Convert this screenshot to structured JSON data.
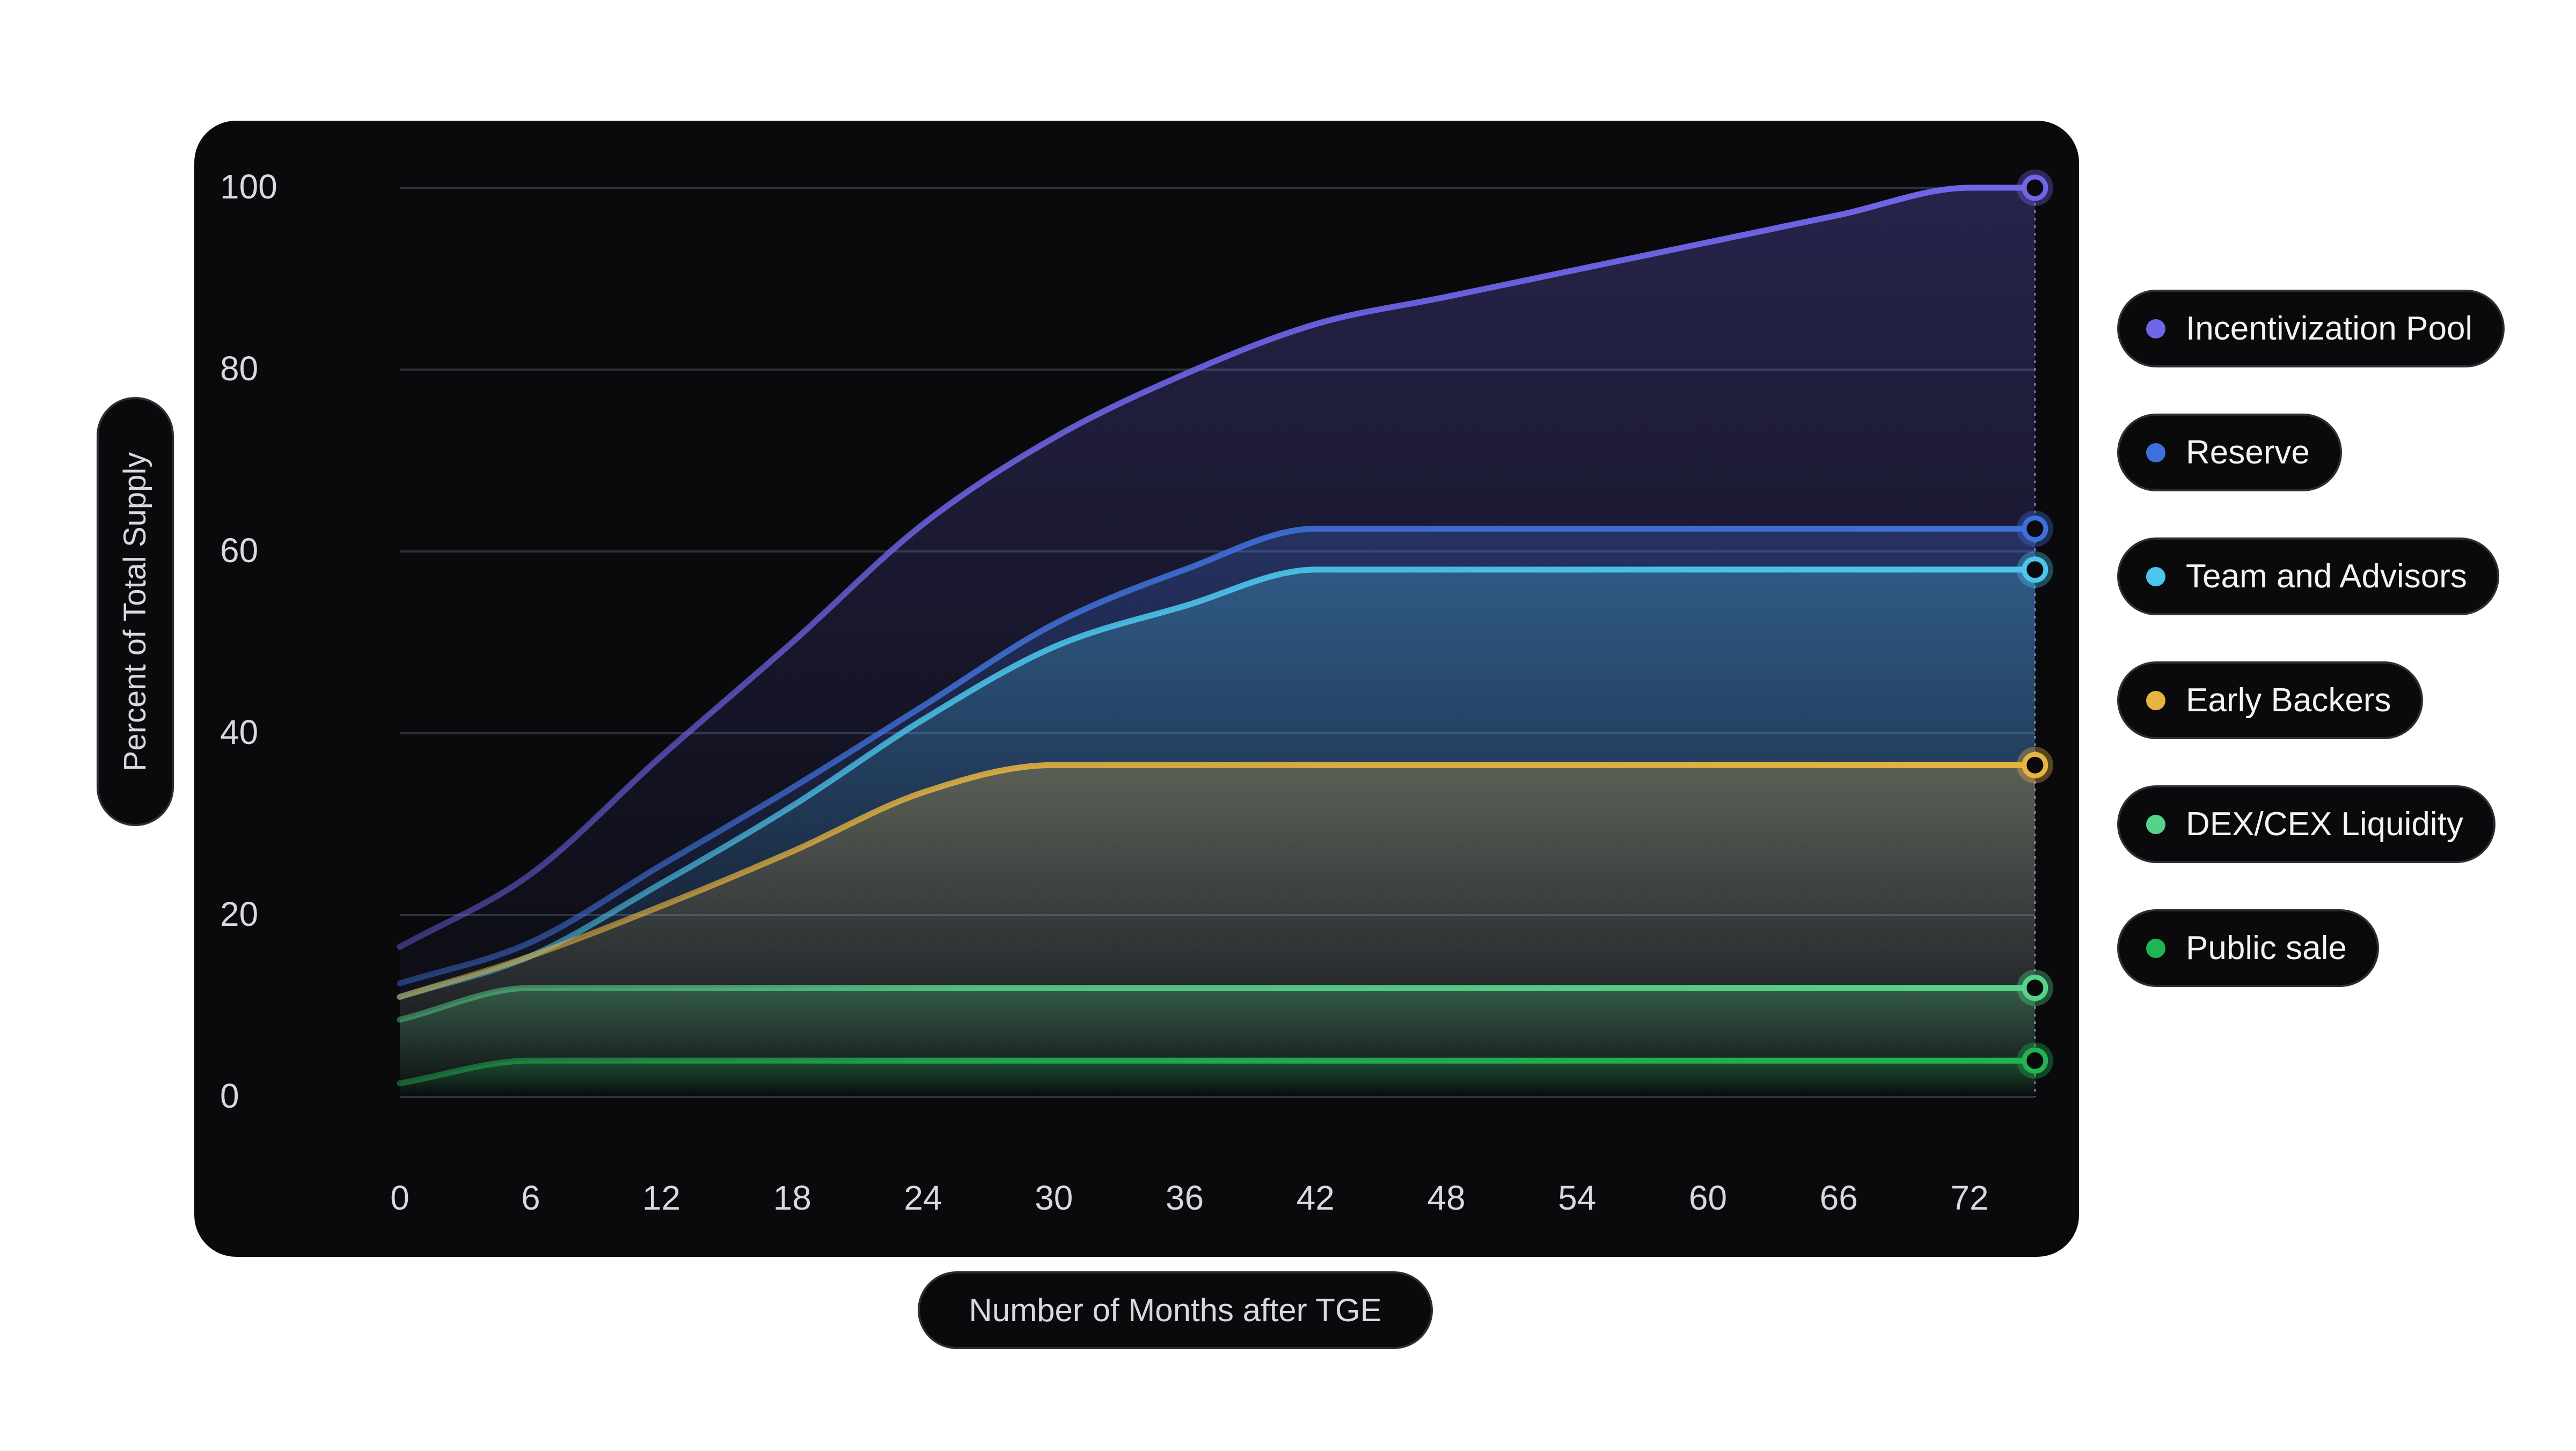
{
  "chart_data": {
    "type": "area",
    "xlabel": "Number of Months after TGE",
    "ylabel": "Percent of Total Supply",
    "xlim": [
      0,
      72
    ],
    "ylim": [
      0,
      100
    ],
    "x_ticks": [
      "0",
      "6",
      "12",
      "18",
      "24",
      "30",
      "36",
      "42",
      "48",
      "54",
      "60",
      "66",
      "72"
    ],
    "y_ticks": [
      "0",
      "20",
      "40",
      "60",
      "80",
      "100"
    ],
    "grid": true,
    "legend_position": "right",
    "series": [
      {
        "name": "Incentivization Pool",
        "color": "#6f66ea",
        "x": [
          0,
          6,
          12,
          18,
          24,
          30,
          36,
          42,
          48,
          54,
          60,
          66,
          72
        ],
        "y": [
          16.5,
          24.5,
          37.5,
          50,
          63,
          72.5,
          79.5,
          85,
          88,
          91,
          94,
          97,
          100
        ]
      },
      {
        "name": "Reserve",
        "color": "#3f70d9",
        "x": [
          0,
          6,
          12,
          18,
          24,
          30,
          36,
          42,
          48,
          54,
          60,
          66,
          72
        ],
        "y": [
          12.5,
          17,
          25.5,
          34,
          43,
          52,
          58,
          62.5,
          62.5,
          62.5,
          62.5,
          62.5,
          62.5
        ]
      },
      {
        "name": "Team and Advisors",
        "color": "#4cc6ec",
        "x": [
          0,
          6,
          12,
          18,
          24,
          30,
          36,
          42,
          48,
          54,
          60,
          66,
          72
        ],
        "y": [
          11,
          15.5,
          23.5,
          32,
          41.5,
          49.5,
          54,
          58,
          58,
          58,
          58,
          58,
          58
        ]
      },
      {
        "name": "Early Backers",
        "color": "#e8b440",
        "x": [
          0,
          6,
          12,
          18,
          24,
          30,
          36,
          42,
          48,
          54,
          60,
          66,
          72
        ],
        "y": [
          11,
          15.5,
          21,
          27,
          33.5,
          36.5,
          36.5,
          36.5,
          36.5,
          36.5,
          36.5,
          36.5,
          36.5
        ]
      },
      {
        "name": "DEX/CEX Liquidity",
        "color": "#56d38a",
        "x": [
          0,
          6,
          12,
          18,
          24,
          30,
          36,
          42,
          48,
          54,
          60,
          66,
          72
        ],
        "y": [
          8.5,
          12,
          12,
          12,
          12,
          12,
          12,
          12,
          12,
          12,
          12,
          12,
          12
        ]
      },
      {
        "name": "Public sale",
        "color": "#20b453",
        "x": [
          0,
          6,
          12,
          18,
          24,
          30,
          36,
          42,
          48,
          54,
          60,
          66,
          72
        ],
        "y": [
          1.5,
          4,
          4,
          4,
          4,
          4,
          4,
          4,
          4,
          4,
          4,
          4,
          4
        ]
      }
    ]
  }
}
